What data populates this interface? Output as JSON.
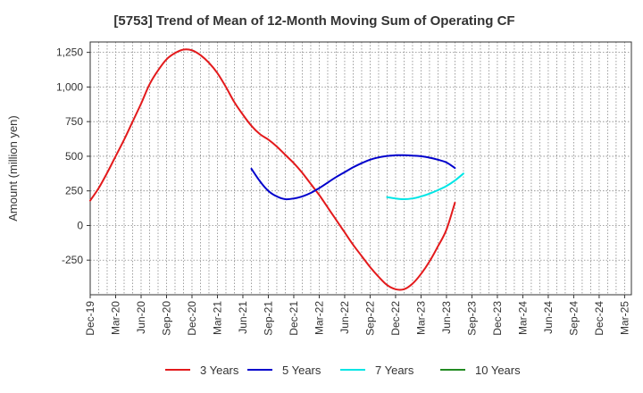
{
  "chart_data": {
    "type": "line",
    "title": "[5753]  Trend of Mean of 12-Month Moving Sum of Operating CF",
    "xlabel": "",
    "ylabel": "Amount (million yen)",
    "ylim": [
      -500,
      1325
    ],
    "yticks": [
      1250,
      1000,
      750,
      500,
      250,
      0,
      -250
    ],
    "ytick_labels": [
      "1,250",
      "1,000",
      "750",
      "500",
      "250",
      "0",
      "-250"
    ],
    "x_tick_labels": [
      "Dec-19",
      "Mar-20",
      "Jun-20",
      "Sep-20",
      "Dec-20",
      "Mar-21",
      "Jun-21",
      "Sep-21",
      "Dec-21",
      "Mar-22",
      "Jun-22",
      "Sep-22",
      "Dec-22",
      "Mar-23",
      "Jun-23",
      "Sep-23",
      "Dec-23",
      "Mar-24",
      "Jun-24",
      "Sep-24",
      "Dec-24",
      "Mar-25"
    ],
    "grid": true,
    "legend_position": "bottom",
    "series": [
      {
        "name": "3 Years",
        "color": "#e31a1c",
        "start_index": 0,
        "values": [
          180,
          270,
          380,
          500,
          620,
          750,
          880,
          1020,
          1120,
          1200,
          1245,
          1270,
          1265,
          1230,
          1175,
          1100,
          1000,
          890,
          800,
          720,
          660,
          620,
          570,
          510,
          450,
          380,
          300,
          220,
          130,
          40,
          -50,
          -140,
          -220,
          -300,
          -370,
          -430,
          -460,
          -460,
          -420,
          -350,
          -260,
          -150,
          -30,
          165
        ]
      },
      {
        "name": "5 Years",
        "color": "#0000cc",
        "start_index": 19,
        "values": [
          410,
          320,
          250,
          210,
          190,
          195,
          210,
          235,
          270,
          310,
          350,
          385,
          420,
          450,
          475,
          492,
          502,
          507,
          507,
          505,
          500,
          490,
          475,
          455,
          415
        ]
      },
      {
        "name": "7 Years",
        "color": "#00e5e5",
        "start_index": 35,
        "values": [
          205,
          195,
          190,
          195,
          210,
          230,
          255,
          285,
          325,
          375
        ]
      },
      {
        "name": "10 Years",
        "color": "#228b22",
        "start_index": 0,
        "values": []
      }
    ]
  }
}
